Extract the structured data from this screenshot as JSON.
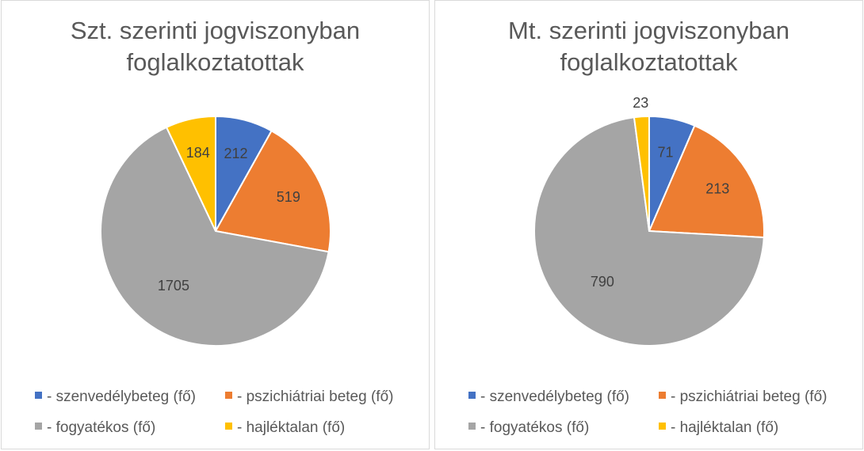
{
  "chart_data": [
    {
      "type": "pie",
      "title_lines": [
        "Szt. szerinti jogviszonyban",
        "foglalkoztatottak"
      ],
      "categories": [
        "- szenvedélybeteg (fő)",
        "- pszichiátriai beteg (fő)",
        "- fogyatékos (fő)",
        "- hajléktalan (fő)"
      ],
      "values": [
        212,
        519,
        1705,
        184
      ],
      "labels": [
        "212",
        "519",
        "1705",
        "184"
      ],
      "colors": [
        "#4472C4",
        "#ED7D31",
        "#A5A5A5",
        "#FFC000"
      ],
      "legend": "bottom"
    },
    {
      "type": "pie",
      "title_lines": [
        "Mt. szerinti jogviszonyban",
        "foglalkoztatottak"
      ],
      "categories": [
        "- szenvedélybeteg (fő)",
        "- pszichiátriai beteg (fő)",
        "- fogyatékos (fő)",
        "- hajléktalan (fő)"
      ],
      "values": [
        71,
        213,
        790,
        23
      ],
      "labels": [
        "71",
        "213",
        "790",
        "23"
      ],
      "colors": [
        "#4472C4",
        "#ED7D31",
        "#A5A5A5",
        "#FFC000"
      ],
      "legend": "bottom"
    }
  ]
}
